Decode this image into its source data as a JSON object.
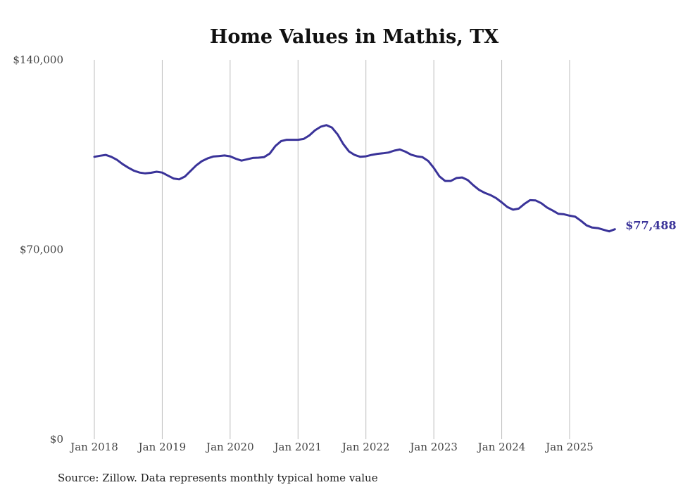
{
  "chart_data": {
    "type": "line",
    "title": "Home Values in Mathis, TX",
    "xlabel": "",
    "ylabel": "",
    "ylim": [
      0,
      140000
    ],
    "yticks": [
      0,
      70000,
      140000
    ],
    "ytick_labels": [
      "$0",
      "$70,000",
      "$140,000"
    ],
    "xlim": [
      2018.0,
      2025.75
    ],
    "xticks": [
      2018,
      2019,
      2020,
      2021,
      2022,
      2023,
      2024,
      2025
    ],
    "xtick_labels": [
      "Jan 2018",
      "Jan 2019",
      "Jan 2020",
      "Jan 2021",
      "Jan 2022",
      "Jan 2023",
      "Jan 2024",
      "Jan 2025"
    ],
    "grid": "vertical",
    "line_color": "#3a3399",
    "end_label": "$77,488",
    "series": [
      {
        "name": "Typical home value",
        "x": [
          2018.0,
          2018.083,
          2018.167,
          2018.25,
          2018.333,
          2018.417,
          2018.5,
          2018.583,
          2018.667,
          2018.75,
          2018.833,
          2018.917,
          2019.0,
          2019.083,
          2019.167,
          2019.25,
          2019.333,
          2019.417,
          2019.5,
          2019.583,
          2019.667,
          2019.75,
          2019.833,
          2019.917,
          2020.0,
          2020.083,
          2020.167,
          2020.25,
          2020.333,
          2020.417,
          2020.5,
          2020.583,
          2020.667,
          2020.75,
          2020.833,
          2020.917,
          2021.0,
          2021.083,
          2021.167,
          2021.25,
          2021.333,
          2021.417,
          2021.5,
          2021.583,
          2021.667,
          2021.75,
          2021.833,
          2021.917,
          2022.0,
          2022.083,
          2022.167,
          2022.25,
          2022.333,
          2022.417,
          2022.5,
          2022.583,
          2022.667,
          2022.75,
          2022.833,
          2022.917,
          2023.0,
          2023.083,
          2023.167,
          2023.25,
          2023.333,
          2023.417,
          2023.5,
          2023.583,
          2023.667,
          2023.75,
          2023.833,
          2023.917,
          2024.0,
          2024.083,
          2024.167,
          2024.25,
          2024.333,
          2024.417,
          2024.5,
          2024.583,
          2024.667,
          2024.75,
          2024.833,
          2024.917,
          2025.0,
          2025.083,
          2025.167,
          2025.25,
          2025.333,
          2025.417,
          2025.5,
          2025.583,
          2025.667
        ],
        "values": [
          104200,
          104600,
          104900,
          104200,
          103100,
          101500,
          100200,
          99100,
          98400,
          98100,
          98300,
          98700,
          98400,
          97300,
          96200,
          95900,
          96900,
          99000,
          101000,
          102600,
          103600,
          104300,
          104500,
          104700,
          104400,
          103500,
          102800,
          103300,
          103800,
          103900,
          104100,
          105400,
          108200,
          110000,
          110500,
          110500,
          110500,
          110800,
          112100,
          114000,
          115300,
          115900,
          115000,
          112500,
          108900,
          106200,
          104900,
          104200,
          104400,
          104900,
          105300,
          105500,
          105800,
          106500,
          106900,
          106100,
          105000,
          104400,
          104100,
          102700,
          100100,
          97000,
          95300,
          95300,
          96400,
          96600,
          95600,
          93700,
          92000,
          90900,
          90100,
          89000,
          87400,
          85700,
          84700,
          85100,
          86800,
          88200,
          88100,
          87100,
          85500,
          84400,
          83200,
          83000,
          82500,
          82100,
          80600,
          78900,
          78100,
          77900,
          77300,
          76700,
          77488
        ]
      }
    ]
  },
  "source_text": "Source: Zillow. Data represents monthly typical home value"
}
